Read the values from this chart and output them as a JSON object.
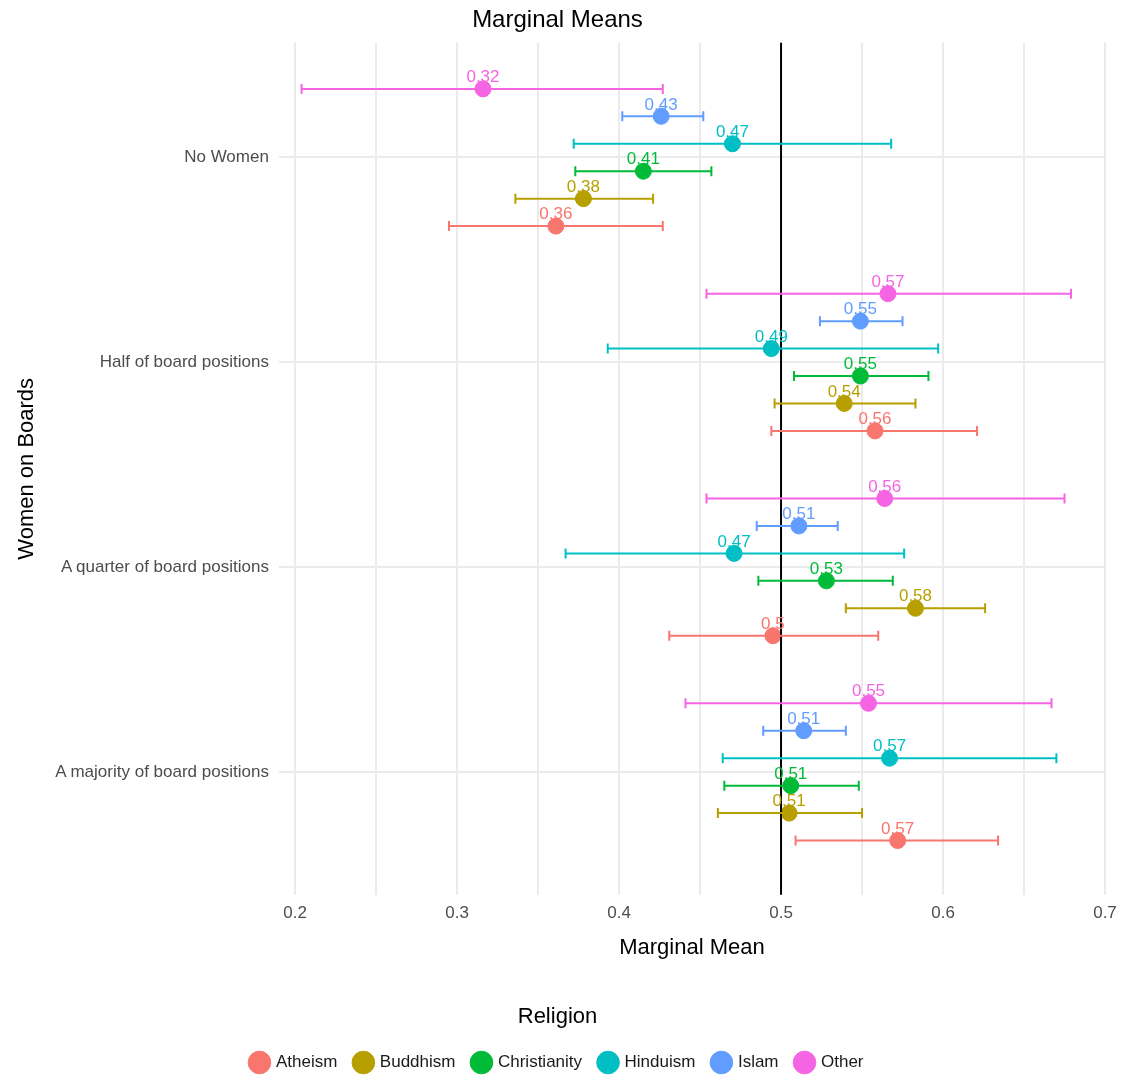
{
  "chart_data": {
    "type": "scatter",
    "orientation": "horizontal",
    "title": "Marginal Means",
    "xlabel": "Marginal Mean",
    "ylabel": "Women on Boards",
    "legend_title": "Religion",
    "legend": "bottom",
    "grid": true,
    "marker": "circle",
    "categories": [
      "No Women",
      "Half of board positions",
      "A quarter of board positions",
      "A majority of board positions"
    ],
    "xlim": [
      0.19,
      0.7
    ],
    "xticks": [
      0.2,
      {
        "value": 0.25,
        "label": null
      },
      0.3,
      {
        "value": 0.35,
        "label": null
      },
      0.4,
      {
        "value": 0.45,
        "label": null
      },
      0.5,
      {
        "value": 0.55,
        "label": null
      },
      0.6,
      {
        "value": 0.65,
        "label": null
      },
      0.7
    ],
    "ref_lines": [
      {
        "axis": "x",
        "value": 0.5,
        "color": "#000000"
      }
    ],
    "series": [
      {
        "name": "Atheism",
        "color": "#f8766d",
        "values": [
          0.361,
          0.558,
          0.495,
          0.572
        ],
        "errors": [
          [
            0.295,
            0.427
          ],
          [
            0.494,
            0.621
          ],
          [
            0.431,
            0.56
          ],
          [
            0.509,
            0.634
          ]
        ],
        "value_labels": [
          "0.36",
          "0.56",
          "0.5",
          "0.57"
        ]
      },
      {
        "name": "Buddhism",
        "color": "#b79f00",
        "values": [
          0.378,
          0.539,
          0.583,
          0.505
        ],
        "errors": [
          [
            0.336,
            0.421
          ],
          [
            0.496,
            0.583
          ],
          [
            0.54,
            0.626
          ],
          [
            0.461,
            0.55
          ]
        ],
        "value_labels": [
          "0.38",
          "0.54",
          "0.58",
          "0.51"
        ]
      },
      {
        "name": "Christianity",
        "color": "#00ba38",
        "values": [
          0.415,
          0.549,
          0.528,
          0.506
        ],
        "errors": [
          [
            0.373,
            0.457
          ],
          [
            0.508,
            0.591
          ],
          [
            0.486,
            0.569
          ],
          [
            0.465,
            0.548
          ]
        ],
        "value_labels": [
          "0.41",
          "0.55",
          "0.53",
          "0.51"
        ]
      },
      {
        "name": "Hinduism",
        "color": "#00bfc4",
        "values": [
          0.47,
          0.494,
          0.471,
          0.567
        ],
        "errors": [
          [
            0.372,
            0.568
          ],
          [
            0.393,
            0.597
          ],
          [
            0.367,
            0.576
          ],
          [
            0.464,
            0.67
          ]
        ],
        "value_labels": [
          "0.47",
          "0.49",
          "0.47",
          "0.57"
        ]
      },
      {
        "name": "Islam",
        "color": "#619cff",
        "values": [
          0.426,
          0.549,
          0.511,
          0.514
        ],
        "errors": [
          [
            0.402,
            0.452
          ],
          [
            0.524,
            0.575
          ],
          [
            0.485,
            0.535
          ],
          [
            0.489,
            0.54
          ]
        ],
        "value_labels": [
          "0.43",
          "0.55",
          "0.51",
          "0.51"
        ]
      },
      {
        "name": "Other",
        "color": "#f564e3",
        "values": [
          0.316,
          0.566,
          0.564,
          0.554
        ],
        "errors": [
          [
            0.204,
            0.427
          ],
          [
            0.454,
            0.679
          ],
          [
            0.454,
            0.675
          ],
          [
            0.441,
            0.667
          ]
        ],
        "value_labels": [
          "0.32",
          "0.57",
          "0.56",
          "0.55"
        ]
      }
    ]
  }
}
